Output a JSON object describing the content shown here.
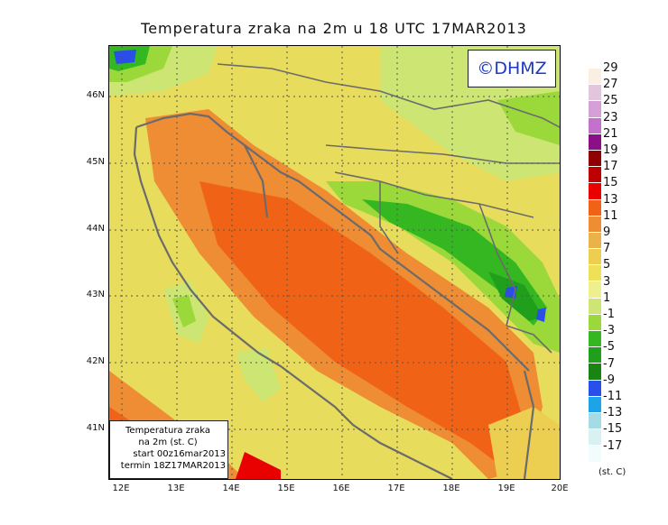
{
  "title": "Temperatura zraka na 2m u 18 UTC 17MAR2013",
  "logo": "©DHMZ",
  "info": {
    "line1": "Temperatura zraka",
    "line2": "na 2m (st. C)",
    "line3": "start 00z16mar2013",
    "line4": "termin 18Z17MAR2013"
  },
  "lat_labels": [
    "46N",
    "45N",
    "44N",
    "43N",
    "42N",
    "41N"
  ],
  "lon_labels": [
    "12E",
    "13E",
    "14E",
    "15E",
    "16E",
    "17E",
    "18E",
    "19E",
    "20E"
  ],
  "colorbar": {
    "labels": [
      "29",
      "27",
      "25",
      "23",
      "21",
      "19",
      "17",
      "15",
      "13",
      "11",
      "9",
      "7",
      "5",
      "3",
      "1",
      "-1",
      "-3",
      "-5",
      "-7",
      "-9",
      "-11",
      "-13",
      "-15",
      "-17"
    ],
    "colors": [
      "#fbeee3",
      "#e1c6de",
      "#d59fd7",
      "#c272cc",
      "#8b0f86",
      "#8f0000",
      "#bd0000",
      "#e90101",
      "#f06317",
      "#ee8d33",
      "#e9b24a",
      "#eccf51",
      "#eee158",
      "#eef08e",
      "#cde572",
      "#9bd93b",
      "#34b720",
      "#1f9f1b",
      "#1a8412",
      "#2a4fe9",
      "#1da4e6",
      "#a6dbe6",
      "#d9f1f3",
      "#f3fcfc"
    ],
    "unit": "(st. C)"
  },
  "map_colors": {
    "bg": "#e8dc5d",
    "sea_warm": "#ee8d33",
    "sea_hot": "#f06317",
    "coast": "#eccf51",
    "cool": "#cde572",
    "green": "#9bd93b",
    "dgreen": "#34b720",
    "vdgreen": "#1f9f1b",
    "blue": "#2a4fe9",
    "red": "#e90101",
    "border": "#6b6b6b"
  }
}
